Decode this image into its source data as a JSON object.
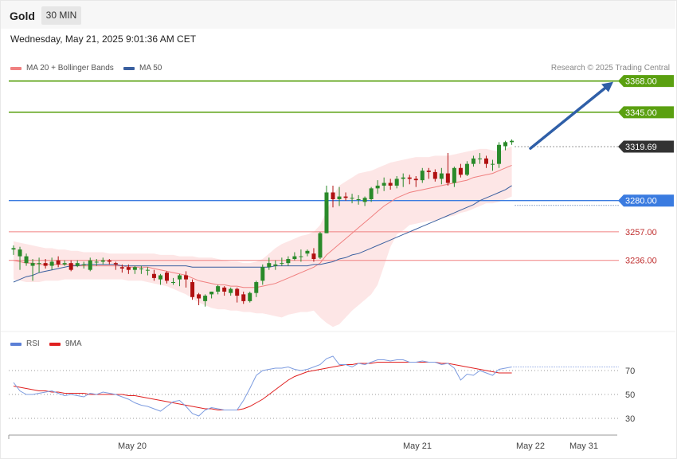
{
  "header": {
    "symbol": "Gold",
    "timeframe": "30 MIN"
  },
  "datetime": "Wednesday, May 21, 2025 9:01:36 AM CET",
  "legend": {
    "ma20": {
      "label": "MA 20 + Bollinger Bands",
      "color": "#f08080"
    },
    "ma50": {
      "label": "MA 50",
      "color": "#3a5f9f"
    }
  },
  "credit": "Research © 2025 Trading Central",
  "rsi_legend": {
    "rsi": {
      "label": "RSI",
      "color": "#5b7fd6"
    },
    "ma9": {
      "label": "9MA",
      "color": "#e02020"
    }
  },
  "colors": {
    "up": "#2a8a2a",
    "down": "#b01010",
    "resistance": "#5aa010",
    "support": "#3a7be0",
    "pivot": "#f08080",
    "last": "#333333",
    "arrow": "#2f5fa8"
  },
  "chart_data": [
    {
      "type": "candlestick",
      "yrange": [
        3186,
        3376
      ],
      "x_axis_labels": [
        "May 20",
        "May 21",
        "May 22",
        "May 31"
      ],
      "levels": [
        {
          "value": 3368.0,
          "label": "3368.00",
          "kind": "resistance"
        },
        {
          "value": 3345.0,
          "label": "3345.00",
          "kind": "resistance"
        },
        {
          "value": 3319.69,
          "label": "3319.69",
          "kind": "last"
        },
        {
          "value": 3280.0,
          "label": "3280.00",
          "kind": "support"
        },
        {
          "value": 3257.0,
          "label": "3257.00",
          "kind": "pivot"
        },
        {
          "value": 3236.0,
          "label": "3236.00",
          "kind": "pivot"
        }
      ],
      "arrow": {
        "from_value": 3319,
        "to_value": 3368
      },
      "candles": [
        [
          3244,
          3245,
          3240,
          3247
        ],
        [
          3239,
          3244,
          3229,
          3246
        ],
        [
          3234,
          3239,
          3232,
          3241
        ],
        [
          3232,
          3234,
          3221,
          3237
        ],
        [
          3234,
          3234,
          3227,
          3238
        ],
        [
          3234,
          3232,
          3230,
          3237
        ],
        [
          3232,
          3235,
          3229,
          3238
        ],
        [
          3236,
          3233,
          3231,
          3239
        ],
        [
          3233,
          3234,
          3232,
          3236
        ],
        [
          3234,
          3229,
          3228,
          3236
        ],
        [
          3232,
          3234,
          3231,
          3236
        ],
        [
          3233,
          3233,
          3230,
          3235
        ],
        [
          3229,
          3236,
          3228,
          3238
        ],
        [
          3235,
          3235,
          3232,
          3237
        ],
        [
          3235,
          3236,
          3233,
          3238
        ],
        [
          3236,
          3235,
          3233,
          3237
        ],
        [
          3234,
          3233,
          3229,
          3235
        ],
        [
          3231,
          3230,
          3227,
          3233
        ],
        [
          3231,
          3229,
          3226,
          3233
        ],
        [
          3229,
          3231,
          3226,
          3232
        ],
        [
          3230,
          3230,
          3226,
          3232
        ],
        [
          3229,
          3229,
          3225,
          3231
        ],
        [
          3226,
          3223,
          3221,
          3229
        ],
        [
          3222,
          3225,
          3218,
          3226
        ],
        [
          3227,
          3221,
          3219,
          3228
        ],
        [
          3220,
          3220,
          3218,
          3223
        ],
        [
          3222,
          3225,
          3217,
          3226
        ],
        [
          3225,
          3222,
          3216,
          3228
        ],
        [
          3220,
          3209,
          3207,
          3222
        ],
        [
          3211,
          3208,
          3203,
          3212
        ],
        [
          3206,
          3210,
          3202,
          3211
        ],
        [
          3211,
          3213,
          3208,
          3213
        ],
        [
          3213,
          3217,
          3211,
          3218
        ],
        [
          3216,
          3213,
          3210,
          3217
        ],
        [
          3212,
          3215,
          3210,
          3216
        ],
        [
          3215,
          3210,
          3205,
          3216
        ],
        [
          3211,
          3206,
          3204,
          3213
        ],
        [
          3206,
          3212,
          3205,
          3213
        ],
        [
          3212,
          3220,
          3209,
          3221
        ],
        [
          3221,
          3231,
          3218,
          3233
        ],
        [
          3231,
          3234,
          3229,
          3238
        ],
        [
          3232,
          3233,
          3229,
          3236
        ],
        [
          3234,
          3234,
          3232,
          3238
        ],
        [
          3234,
          3237,
          3232,
          3239
        ],
        [
          3237,
          3239,
          3236,
          3242
        ],
        [
          3239,
          3239,
          3235,
          3244
        ],
        [
          3241,
          3243,
          3239,
          3244
        ],
        [
          3241,
          3237,
          3235,
          3245
        ],
        [
          3238,
          3256,
          3237,
          3257
        ],
        [
          3256,
          3286,
          3256,
          3291
        ],
        [
          3286,
          3281,
          3275,
          3291
        ],
        [
          3281,
          3283,
          3276,
          3290
        ],
        [
          3283,
          3282,
          3280,
          3286
        ],
        [
          3282,
          3282,
          3278,
          3285
        ],
        [
          3281,
          3281,
          3277,
          3284
        ],
        [
          3279,
          3282,
          3276,
          3283
        ],
        [
          3281,
          3289,
          3279,
          3290
        ],
        [
          3289,
          3291,
          3285,
          3295
        ],
        [
          3291,
          3293,
          3287,
          3297
        ],
        [
          3293,
          3291,
          3288,
          3296
        ],
        [
          3291,
          3296,
          3289,
          3298
        ],
        [
          3296,
          3297,
          3290,
          3300
        ],
        [
          3297,
          3296,
          3292,
          3299
        ],
        [
          3296,
          3295,
          3290,
          3298
        ],
        [
          3295,
          3302,
          3293,
          3304
        ],
        [
          3302,
          3301,
          3296,
          3304
        ],
        [
          3301,
          3296,
          3294,
          3303
        ],
        [
          3296,
          3300,
          3292,
          3304
        ],
        [
          3300,
          3293,
          3291,
          3315
        ],
        [
          3293,
          3304,
          3290,
          3305
        ],
        [
          3304,
          3299,
          3297,
          3307
        ],
        [
          3299,
          3307,
          3298,
          3309
        ],
        [
          3307,
          3311,
          3305,
          3313
        ],
        [
          3311,
          3311,
          3307,
          3315
        ],
        [
          3311,
          3307,
          3304,
          3313
        ],
        [
          3307,
          3307,
          3302,
          3310
        ],
        [
          3307,
          3321,
          3304,
          3323
        ],
        [
          3320,
          3323,
          3317,
          3324
        ],
        [
          3323,
          3324,
          3321,
          3325
        ]
      ],
      "ma20": [
        3236,
        3235,
        3234,
        3234,
        3233,
        3233,
        3233,
        3233,
        3233,
        3233,
        3232,
        3232,
        3232,
        3232,
        3232,
        3232,
        3232,
        3232,
        3231,
        3231,
        3231,
        3231,
        3230,
        3229,
        3228,
        3227,
        3226,
        3225,
        3223,
        3221,
        3220,
        3219,
        3218,
        3218,
        3217,
        3217,
        3216,
        3216,
        3216,
        3217,
        3218,
        3219,
        3221,
        3223,
        3225,
        3227,
        3229,
        3231,
        3234,
        3240,
        3244,
        3248,
        3252,
        3256,
        3260,
        3264,
        3268,
        3272,
        3276,
        3279,
        3282,
        3284,
        3286,
        3287,
        3288,
        3289,
        3290,
        3291,
        3292,
        3293,
        3294,
        3295,
        3297,
        3298,
        3299,
        3300,
        3302,
        3304,
        3306
      ],
      "ma50": [
        3220,
        3222,
        3224,
        3225,
        3227,
        3228,
        3229,
        3230,
        3231,
        3232,
        3232,
        3233,
        3233,
        3233,
        3233,
        3233,
        3233,
        3232,
        3232,
        3232,
        3232,
        3232,
        3232,
        3232,
        3232,
        3232,
        3232,
        3232,
        3231,
        3231,
        3231,
        3231,
        3231,
        3231,
        3231,
        3231,
        3231,
        3231,
        3231,
        3231,
        3231,
        3232,
        3232,
        3232,
        3232,
        3232,
        3232,
        3233,
        3233,
        3234,
        3235,
        3237,
        3238,
        3240,
        3241,
        3243,
        3245,
        3247,
        3249,
        3251,
        3253,
        3255,
        3257,
        3259,
        3261,
        3263,
        3265,
        3267,
        3269,
        3271,
        3273,
        3275,
        3277,
        3280,
        3282,
        3284,
        3286,
        3288,
        3291
      ],
      "bb_upper": [
        3250,
        3249,
        3248,
        3247,
        3246,
        3245,
        3245,
        3244,
        3244,
        3243,
        3243,
        3242,
        3242,
        3242,
        3242,
        3241,
        3241,
        3241,
        3241,
        3241,
        3241,
        3241,
        3241,
        3240,
        3240,
        3240,
        3239,
        3239,
        3239,
        3238,
        3238,
        3238,
        3237,
        3236,
        3235,
        3235,
        3234,
        3234,
        3235,
        3237,
        3241,
        3245,
        3248,
        3250,
        3252,
        3254,
        3255,
        3257,
        3262,
        3272,
        3283,
        3291,
        3294,
        3297,
        3300,
        3301,
        3302,
        3304,
        3306,
        3308,
        3309,
        3310,
        3311,
        3312,
        3312,
        3312,
        3313,
        3313,
        3313,
        3314,
        3315,
        3316,
        3317,
        3318,
        3318,
        3317,
        3316,
        3318,
        3320
      ],
      "bb_lower": [
        3222,
        3221,
        3220,
        3220,
        3220,
        3221,
        3221,
        3221,
        3222,
        3222,
        3222,
        3222,
        3222,
        3222,
        3222,
        3222,
        3222,
        3222,
        3221,
        3221,
        3221,
        3220,
        3219,
        3218,
        3217,
        3215,
        3213,
        3211,
        3208,
        3205,
        3203,
        3201,
        3200,
        3200,
        3199,
        3199,
        3198,
        3198,
        3197,
        3197,
        3196,
        3195,
        3194,
        3196,
        3197,
        3198,
        3198,
        3199,
        3194,
        3190,
        3187,
        3189,
        3194,
        3199,
        3203,
        3207,
        3211,
        3218,
        3232,
        3246,
        3255,
        3258,
        3262,
        3263,
        3264,
        3265,
        3265,
        3267,
        3268,
        3269,
        3271,
        3272,
        3274,
        3276,
        3278,
        3278,
        3279,
        3281,
        3283
      ]
    },
    {
      "type": "line",
      "name_label": "RSI",
      "yrange": [
        20,
        90
      ],
      "yticks": [
        70,
        50,
        30
      ],
      "rsi": [
        60,
        53,
        50,
        50,
        51,
        52,
        53,
        51,
        49,
        50,
        49,
        48,
        51,
        50,
        52,
        51,
        50,
        48,
        46,
        43,
        41,
        40,
        38,
        36,
        40,
        44,
        45,
        40,
        34,
        32,
        37,
        39,
        38,
        37,
        37,
        37,
        45,
        55,
        66,
        70,
        71,
        72,
        72,
        73,
        71,
        70,
        71,
        73,
        75,
        80,
        82,
        75,
        75,
        73,
        76,
        75,
        77,
        79,
        79,
        78,
        79,
        79,
        77,
        77,
        78,
        77,
        77,
        75,
        76,
        72,
        62,
        67,
        66,
        70,
        68,
        66,
        71,
        72,
        73
      ],
      "ma9": [
        57,
        56,
        55,
        54,
        53,
        53,
        52,
        52,
        51,
        51,
        51,
        51,
        50,
        50,
        50,
        50,
        50,
        50,
        49,
        49,
        48,
        47,
        46,
        45,
        44,
        43,
        42,
        41,
        40,
        39,
        38,
        38,
        37,
        37,
        37,
        37,
        38,
        40,
        43,
        46,
        50,
        54,
        58,
        62,
        65,
        67,
        69,
        70,
        71,
        72,
        73,
        74,
        75,
        75,
        76,
        76,
        76,
        77,
        77,
        77,
        77,
        77,
        77,
        77,
        77,
        77,
        77,
        76,
        76,
        75,
        74,
        73,
        72,
        71,
        70,
        69,
        68,
        68,
        68
      ]
    }
  ]
}
